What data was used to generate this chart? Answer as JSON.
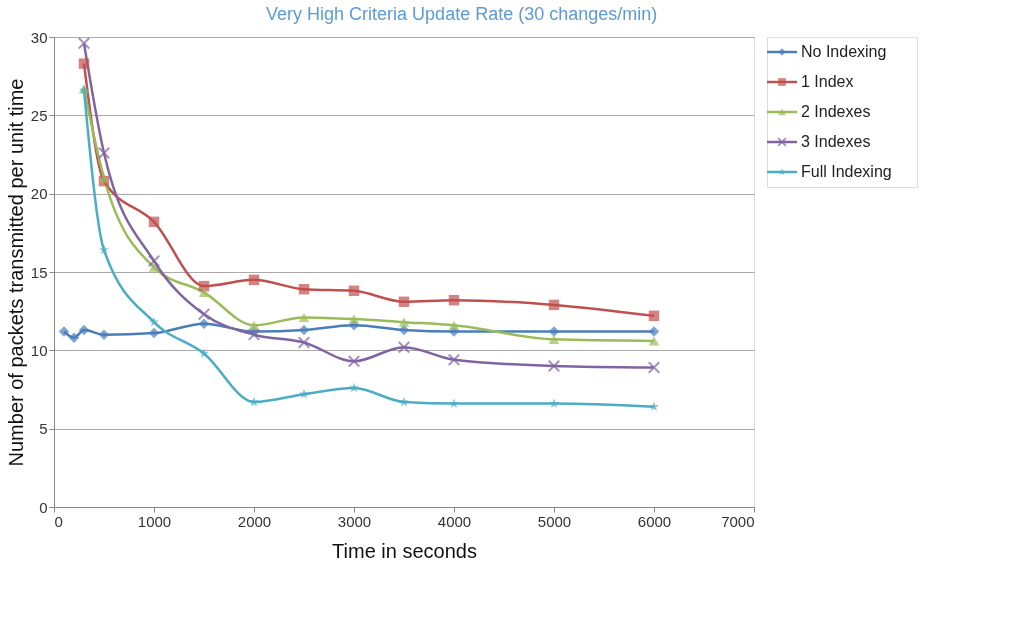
{
  "chart_data": {
    "type": "line",
    "title": "Very High Criteria Update Rate (30 changes/min)",
    "xlabel": "Time in seconds",
    "ylabel": "Number of packets transmitted per unit time",
    "xlim": [
      0,
      7000
    ],
    "xticks": [
      0,
      1000,
      2000,
      3000,
      4000,
      5000,
      6000,
      7000
    ],
    "ylim": [
      0,
      30
    ],
    "yticks": [
      0,
      5,
      10,
      15,
      20,
      25,
      30
    ],
    "grid": "y",
    "legend": "right",
    "line_style": "solid",
    "series": [
      {
        "name": "No Indexing",
        "color": "#4a7ebb",
        "marker": "diamond",
        "x": [
          100,
          200,
          300,
          500,
          1000,
          1500,
          2000,
          2500,
          3000,
          3500,
          4000,
          5000,
          6000
        ],
        "values": [
          11.2,
          10.8,
          11.3,
          11.0,
          11.1,
          11.7,
          11.2,
          11.3,
          11.6,
          11.3,
          11.2,
          11.2,
          11.2
        ]
      },
      {
        "name": "1 Index",
        "color": "#c0504d",
        "marker": "square",
        "x": [
          300,
          500,
          1000,
          1500,
          2000,
          2500,
          3000,
          3500,
          4000,
          5000,
          6000
        ],
        "values": [
          28.3,
          20.8,
          18.2,
          14.1,
          14.5,
          13.9,
          13.8,
          13.1,
          13.2,
          12.9,
          12.2
        ]
      },
      {
        "name": "2 Indexes",
        "color": "#9bbb59",
        "marker": "triangle",
        "x": [
          300,
          500,
          1000,
          1500,
          2000,
          2500,
          3000,
          3500,
          4000,
          5000,
          6000
        ],
        "values": [
          26.7,
          21.0,
          15.3,
          13.7,
          11.6,
          12.1,
          12.0,
          11.8,
          11.6,
          10.7,
          10.6
        ]
      },
      {
        "name": "3 Indexes",
        "color": "#8064a2",
        "marker": "cross",
        "x": [
          300,
          500,
          1000,
          1500,
          2000,
          2500,
          3000,
          3500,
          4000,
          5000,
          6000
        ],
        "values": [
          29.6,
          22.6,
          15.7,
          12.3,
          11.0,
          10.5,
          9.3,
          10.2,
          9.4,
          9.0,
          8.9
        ]
      },
      {
        "name": "Full Indexing",
        "color": "#4bacc6",
        "marker": "star",
        "x": [
          300,
          500,
          1000,
          1500,
          2000,
          2500,
          3000,
          3500,
          4000,
          5000,
          6000
        ],
        "values": [
          26.6,
          16.4,
          11.8,
          9.8,
          6.7,
          7.2,
          7.6,
          6.7,
          6.6,
          6.6,
          6.4
        ]
      }
    ]
  }
}
